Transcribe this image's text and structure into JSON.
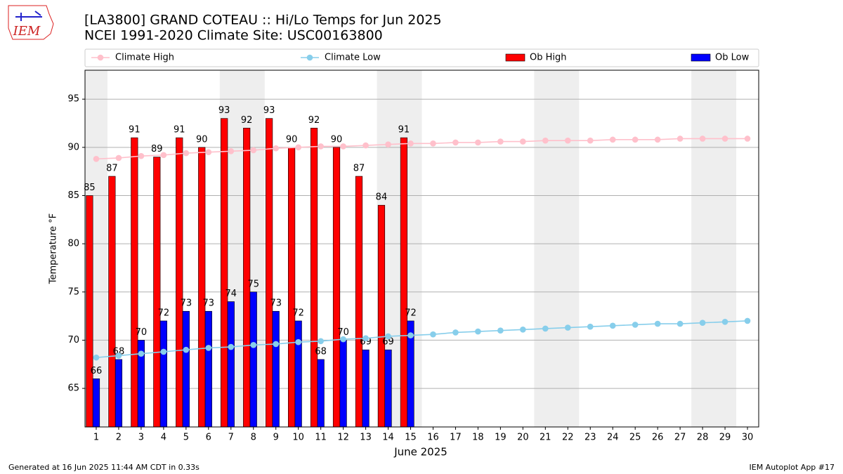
{
  "chart_data": {
    "type": "bar",
    "logo_text": "IEM",
    "title": "[LA3800] GRAND COTEAU :: Hi/Lo Temps for Jun 2025",
    "subtitle": "NCEI 1991-2020 Climate Site: USC00163800",
    "xlabel": "June 2025",
    "ylabel": "Temperature °F",
    "x": [
      1,
      2,
      3,
      4,
      5,
      6,
      7,
      8,
      9,
      10,
      11,
      12,
      13,
      14,
      15,
      16,
      17,
      18,
      19,
      20,
      21,
      22,
      23,
      24,
      25,
      26,
      27,
      28,
      29,
      30
    ],
    "xlim": [
      0.5,
      30.5
    ],
    "xticks": [
      1,
      2,
      3,
      4,
      5,
      6,
      7,
      8,
      9,
      10,
      11,
      12,
      13,
      14,
      15,
      16,
      17,
      18,
      19,
      20,
      21,
      22,
      23,
      24,
      25,
      26,
      27,
      28,
      29,
      30
    ],
    "ylim": [
      61,
      98
    ],
    "yticks": [
      65,
      70,
      75,
      80,
      85,
      90,
      95
    ],
    "grid": true,
    "legend": "top",
    "weekend_shading": [
      [
        0.5,
        1.5
      ],
      [
        6.5,
        8.5
      ],
      [
        13.5,
        15.5
      ],
      [
        20.5,
        22.5
      ],
      [
        27.5,
        29.5
      ]
    ],
    "series": [
      {
        "name": "Climate High",
        "type": "line",
        "color": "#ffc0cb",
        "values": [
          88.8,
          88.9,
          89.1,
          89.2,
          89.4,
          89.5,
          89.6,
          89.7,
          89.9,
          90.0,
          90.1,
          90.1,
          90.2,
          90.3,
          90.4,
          90.4,
          90.5,
          90.5,
          90.6,
          90.6,
          90.7,
          90.7,
          90.7,
          90.8,
          90.8,
          90.8,
          90.9,
          90.9,
          90.9,
          90.9
        ]
      },
      {
        "name": "Climate Low",
        "type": "line",
        "color": "#87ceeb",
        "values": [
          68.2,
          68.4,
          68.6,
          68.8,
          69.0,
          69.2,
          69.3,
          69.5,
          69.6,
          69.8,
          69.9,
          70.1,
          70.2,
          70.4,
          70.5,
          70.6,
          70.8,
          70.9,
          71.0,
          71.1,
          71.2,
          71.3,
          71.4,
          71.5,
          71.6,
          71.7,
          71.7,
          71.8,
          71.9,
          72.0
        ]
      },
      {
        "name": "Ob High",
        "type": "bar",
        "color": "#ff0000",
        "values": [
          85,
          87,
          91,
          89,
          91,
          90,
          93,
          92,
          93,
          90,
          92,
          90,
          87,
          84,
          91,
          null,
          null,
          null,
          null,
          null,
          null,
          null,
          null,
          null,
          null,
          null,
          null,
          null,
          null,
          null
        ]
      },
      {
        "name": "Ob Low",
        "type": "bar",
        "color": "#0000ff",
        "values": [
          66,
          68,
          70,
          72,
          73,
          73,
          74,
          75,
          73,
          72,
          68,
          70,
          69,
          69,
          72,
          null,
          null,
          null,
          null,
          null,
          null,
          null,
          null,
          null,
          null,
          null,
          null,
          null,
          null,
          null
        ]
      }
    ],
    "footer_left": "Generated at 16 Jun 2025 11:44 AM CDT in 0.33s",
    "footer_right": "IEM Autoplot App #17"
  }
}
